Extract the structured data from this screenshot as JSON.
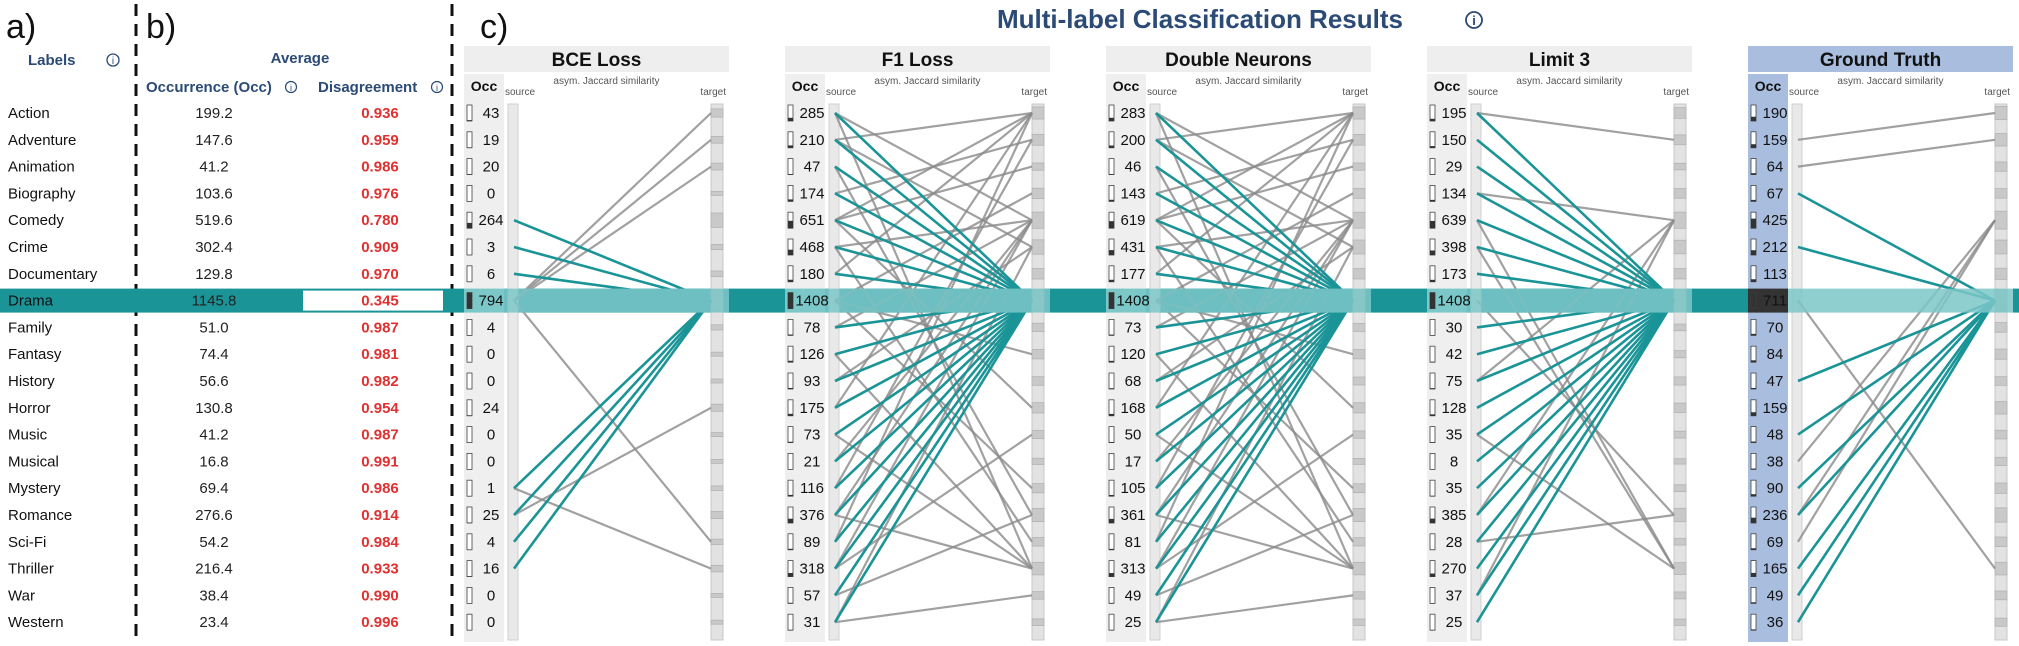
{
  "title": "Multi-label Classification Results",
  "info_icon": "info-circle-icon",
  "section_labels": [
    "a)",
    "b)",
    "c)"
  ],
  "labels_header": "Labels",
  "average_header": "Average",
  "occurrence_header": "Occurrence (Occ)",
  "disagreement_header": "Disagreement",
  "highlight_label": "Drama",
  "colors": {
    "highlight": "#1a9497",
    "highlight_light": "#7cc7c8",
    "gray_link": "#8a8a8a",
    "ground_truth_bg": "#a9bedf",
    "disagreement_red": "#e03030",
    "disagreement_green": "#3aa656",
    "title_blue": "#2b4a76"
  },
  "labels": [
    {
      "name": "Action",
      "occ": "199.2",
      "dis": "0.936"
    },
    {
      "name": "Adventure",
      "occ": "147.6",
      "dis": "0.959"
    },
    {
      "name": "Animation",
      "occ": "41.2",
      "dis": "0.986"
    },
    {
      "name": "Biography",
      "occ": "103.6",
      "dis": "0.976"
    },
    {
      "name": "Comedy",
      "occ": "519.6",
      "dis": "0.780"
    },
    {
      "name": "Crime",
      "occ": "302.4",
      "dis": "0.909"
    },
    {
      "name": "Documentary",
      "occ": "129.8",
      "dis": "0.970"
    },
    {
      "name": "Drama",
      "occ": "1145.8",
      "dis": "0.345"
    },
    {
      "name": "Family",
      "occ": "51.0",
      "dis": "0.987"
    },
    {
      "name": "Fantasy",
      "occ": "74.4",
      "dis": "0.981"
    },
    {
      "name": "History",
      "occ": "56.6",
      "dis": "0.982"
    },
    {
      "name": "Horror",
      "occ": "130.8",
      "dis": "0.954"
    },
    {
      "name": "Music",
      "occ": "41.2",
      "dis": "0.987"
    },
    {
      "name": "Musical",
      "occ": "16.8",
      "dis": "0.991"
    },
    {
      "name": "Mystery",
      "occ": "69.4",
      "dis": "0.986"
    },
    {
      "name": "Romance",
      "occ": "276.6",
      "dis": "0.914"
    },
    {
      "name": "Sci-Fi",
      "occ": "54.2",
      "dis": "0.984"
    },
    {
      "name": "Thriller",
      "occ": "216.4",
      "dis": "0.933"
    },
    {
      "name": "War",
      "occ": "38.4",
      "dis": "0.990"
    },
    {
      "name": "Western",
      "occ": "23.4",
      "dis": "0.996"
    }
  ],
  "panel_texts": {
    "occ": "Occ",
    "source": "source",
    "target": "target",
    "similarity": "asym. Jaccard similarity"
  },
  "panels": [
    {
      "name": "BCE Loss",
      "ground_truth": false,
      "occ": [
        43,
        19,
        20,
        0,
        264,
        3,
        6,
        794,
        4,
        0,
        0,
        24,
        0,
        0,
        1,
        25,
        4,
        16,
        0,
        0
      ],
      "teal_sources": [
        4,
        5,
        6,
        14,
        15,
        16,
        17
      ],
      "gray_links": [
        [
          7,
          0
        ],
        [
          7,
          1
        ],
        [
          7,
          2
        ],
        [
          7,
          16
        ],
        [
          14,
          17
        ],
        [
          15,
          11
        ]
      ]
    },
    {
      "name": "F1 Loss",
      "ground_truth": false,
      "occ": [
        285,
        210,
        47,
        174,
        651,
        468,
        180,
        1408,
        78,
        126,
        93,
        175,
        73,
        21,
        116,
        376,
        89,
        318,
        57,
        31
      ],
      "teal_sources": [
        0,
        1,
        2,
        3,
        4,
        5,
        6,
        8,
        9,
        10,
        11,
        12,
        13,
        14,
        15,
        16,
        17,
        18,
        19
      ],
      "gray_links": [
        [
          0,
          4
        ],
        [
          0,
          17
        ],
        [
          1,
          0
        ],
        [
          1,
          5
        ],
        [
          2,
          15
        ],
        [
          3,
          1
        ],
        [
          4,
          0
        ],
        [
          4,
          2
        ],
        [
          4,
          11
        ],
        [
          5,
          4
        ],
        [
          5,
          16
        ],
        [
          6,
          0
        ],
        [
          7,
          3
        ],
        [
          7,
          9
        ],
        [
          7,
          14
        ],
        [
          8,
          4
        ],
        [
          9,
          17
        ],
        [
          10,
          5
        ],
        [
          11,
          0
        ],
        [
          12,
          17
        ],
        [
          13,
          4
        ],
        [
          14,
          1
        ],
        [
          15,
          4
        ],
        [
          15,
          17
        ],
        [
          16,
          0
        ],
        [
          17,
          4
        ],
        [
          17,
          12
        ],
        [
          18,
          15
        ],
        [
          19,
          18
        ],
        [
          19,
          5
        ]
      ]
    },
    {
      "name": "Double Neurons",
      "ground_truth": false,
      "occ": [
        283,
        200,
        46,
        143,
        619,
        431,
        177,
        1408,
        73,
        120,
        68,
        168,
        50,
        17,
        105,
        361,
        81,
        313,
        49,
        25
      ],
      "teal_sources": [
        0,
        1,
        2,
        3,
        4,
        5,
        6,
        8,
        9,
        10,
        11,
        12,
        13,
        14,
        15,
        16,
        17,
        18,
        19
      ],
      "gray_links": [
        [
          0,
          4
        ],
        [
          0,
          17
        ],
        [
          1,
          0
        ],
        [
          1,
          5
        ],
        [
          2,
          15
        ],
        [
          3,
          1
        ],
        [
          4,
          0
        ],
        [
          4,
          2
        ],
        [
          4,
          11
        ],
        [
          5,
          4
        ],
        [
          5,
          16
        ],
        [
          6,
          0
        ],
        [
          7,
          3
        ],
        [
          7,
          9
        ],
        [
          7,
          14
        ],
        [
          8,
          4
        ],
        [
          9,
          17
        ],
        [
          10,
          5
        ],
        [
          11,
          0
        ],
        [
          12,
          17
        ],
        [
          13,
          4
        ],
        [
          14,
          1
        ],
        [
          15,
          4
        ],
        [
          15,
          17
        ],
        [
          16,
          0
        ],
        [
          17,
          4
        ],
        [
          17,
          12
        ],
        [
          18,
          15
        ],
        [
          19,
          18
        ],
        [
          19,
          5
        ]
      ]
    },
    {
      "name": "Limit 3",
      "ground_truth": false,
      "occ": [
        195,
        150,
        29,
        134,
        639,
        398,
        173,
        1408,
        30,
        42,
        75,
        128,
        35,
        8,
        35,
        385,
        28,
        270,
        37,
        25
      ],
      "teal_sources": [
        0,
        1,
        2,
        3,
        4,
        5,
        6,
        8,
        9,
        10,
        11,
        12,
        13,
        14,
        15,
        16,
        17,
        18,
        19
      ],
      "gray_links": [
        [
          0,
          1
        ],
        [
          3,
          4
        ],
        [
          4,
          17
        ],
        [
          5,
          17
        ],
        [
          7,
          15
        ],
        [
          10,
          4
        ],
        [
          12,
          17
        ],
        [
          15,
          4
        ],
        [
          16,
          15
        ],
        [
          18,
          4
        ]
      ]
    },
    {
      "name": "Ground Truth",
      "ground_truth": true,
      "occ": [
        190,
        159,
        64,
        67,
        425,
        212,
        113,
        711,
        70,
        84,
        47,
        159,
        48,
        38,
        90,
        236,
        69,
        165,
        49,
        36
      ],
      "teal_sources": [
        3,
        5,
        10,
        12,
        14,
        15,
        17,
        18,
        19
      ],
      "gray_links": [
        [
          1,
          0
        ],
        [
          2,
          1
        ],
        [
          13,
          4
        ],
        [
          16,
          4
        ],
        [
          7,
          17
        ],
        [
          15,
          4
        ]
      ]
    }
  ]
}
